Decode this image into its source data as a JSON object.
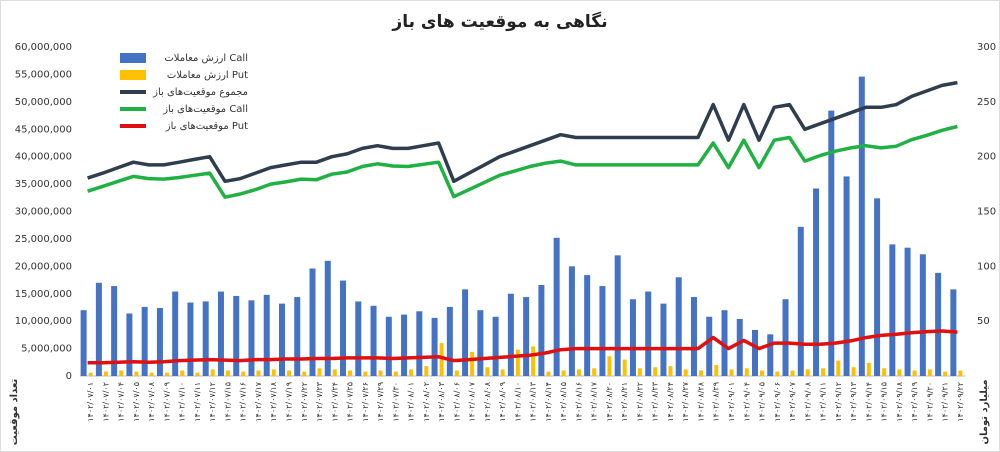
{
  "chart_data": {
    "type": "bar-line",
    "title": "نگاهی به موقعیت های باز",
    "ylabel": "تعداد موقعیت",
    "y2label": "میلیارد تومان",
    "ylim": [
      0,
      60000000
    ],
    "yticks": [
      {
        "value": 0,
        "label": "0"
      },
      {
        "value": 5000000,
        "label": "5,000,000"
      },
      {
        "value": 10000000,
        "label": "10,000,000"
      },
      {
        "value": 15000000,
        "label": "15,000,000"
      },
      {
        "value": 20000000,
        "label": "20,000,000"
      },
      {
        "value": 25000000,
        "label": "25,000,000"
      },
      {
        "value": 30000000,
        "label": "30,000,000"
      },
      {
        "value": 35000000,
        "label": "35,000,000"
      },
      {
        "value": 40000000,
        "label": "40,000,000"
      },
      {
        "value": 45000000,
        "label": "45,000,000"
      },
      {
        "value": 50000000,
        "label": "50,000,000"
      },
      {
        "value": 55000000,
        "label": "55,000,000"
      },
      {
        "value": 60000000,
        "label": "60,000,000"
      }
    ],
    "y2lim": [
      0,
      300
    ],
    "y2ticks": [
      50,
      100,
      150,
      200,
      250,
      300
    ],
    "legend": "top-left",
    "categories": [
      "۱۴۰۲/۰۷/۰۱",
      "۱۴۰۲/۰۷/۰۲",
      "۱۴۰۲/۰۷/۰۴",
      "۱۴۰۲/۰۷/۰۵",
      "۱۴۰۲/۰۷/۰۸",
      "۱۴۰۲/۰۷/۰۹",
      "۱۴۰۲/۰۷/۱۰",
      "۱۴۰۲/۰۷/۱۱",
      "۱۴۰۲/۰۷/۱۲",
      "۱۴۰۲/۰۷/۱۵",
      "۱۴۰۲/۰۷/۱۶",
      "۱۴۰۲/۰۷/۱۷",
      "۱۴۰۲/۰۷/۱۸",
      "۱۴۰۲/۰۷/۱۹",
      "۱۴۰۲/۰۷/۲۲",
      "۱۴۰۲/۰۷/۲۳",
      "۱۴۰۲/۰۷/۲۴",
      "۱۴۰۲/۰۷/۲۵",
      "۱۴۰۲/۰۷/۲۶",
      "۱۴۰۲/۰۷/۲۹",
      "۱۴۰۲/۰۷/۳۰",
      "۱۴۰۲/۰۸/۰۱",
      "۱۴۰۲/۰۸/۰۲",
      "۱۴۰۲/۰۸/۰۳",
      "۱۴۰۲/۰۸/۰۶",
      "۱۴۰۲/۰۸/۰۷",
      "۱۴۰۲/۰۸/۰۸",
      "۱۴۰۲/۰۸/۰۹",
      "۱۴۰۲/۰۸/۱۰",
      "۱۴۰۲/۰۸/۱۳",
      "۱۴۰۲/۰۸/۱۴",
      "۱۴۰۲/۰۸/۱۵",
      "۱۴۰۲/۰۸/۱۶",
      "۱۴۰۲/۰۸/۱۷",
      "۱۴۰۲/۰۸/۲۰",
      "۱۴۰۲/۰۸/۲۱",
      "۱۴۰۲/۰۸/۲۲",
      "۱۴۰۲/۰۸/۲۳",
      "۱۴۰۲/۰۸/۲۴",
      "۱۴۰۲/۰۸/۲۷",
      "۱۴۰۲/۰۸/۲۸",
      "۱۴۰۲/۰۸/۲۹",
      "۱۴۰۲/۰۹/۰۱",
      "۱۴۰۲/۰۹/۰۴",
      "۱۴۰۲/۰۹/۰۵",
      "۱۴۰۲/۰۹/۰۶",
      "۱۴۰۲/۰۹/۰۷",
      "۱۴۰۲/۰۹/۰۸",
      "۱۴۰۲/۰۹/۱۱",
      "۱۴۰۲/۰۹/۱۲",
      "۱۴۰۲/۰۹/۱۳",
      "۱۴۰۲/۰۹/۱۴",
      "۱۴۰۲/۰۹/۱۵",
      "۱۴۰۲/۰۹/۱۸",
      "۱۴۰۲/۰۹/۱۹",
      "۱۴۰۲/۰۹/۲۰",
      "۱۴۰۲/۰۹/۲۱",
      "۱۴۰۲/۰۹/۲۲"
    ],
    "series": [
      {
        "name": "ارزش معاملات Call",
        "type": "bar",
        "axis": "y2",
        "color": "#4472c4",
        "values": [
          60,
          85,
          82,
          57,
          63,
          62,
          77,
          67,
          68,
          77,
          73,
          69,
          74,
          66,
          72,
          98,
          105,
          87,
          68,
          64,
          54,
          56,
          59,
          53,
          63,
          79,
          60,
          54,
          75,
          72,
          83,
          126,
          100,
          92,
          82,
          110,
          70,
          77,
          66,
          90,
          72,
          54,
          60,
          52,
          42,
          38,
          70,
          136,
          171,
          242,
          182,
          273,
          162,
          120,
          117,
          111,
          94,
          79
        ]
      },
      {
        "name": "ارزش معاملات Put",
        "type": "bar",
        "axis": "y2",
        "color": "#ffc000",
        "values": [
          3,
          4,
          5,
          4,
          3,
          3,
          5,
          3,
          6,
          5,
          4,
          5,
          6,
          5,
          4,
          7,
          6,
          5,
          4,
          5,
          4,
          6,
          9,
          30,
          5,
          22,
          8,
          6,
          24,
          27,
          4,
          5,
          6,
          7,
          18,
          15,
          7,
          8,
          9,
          6,
          5,
          10,
          6,
          7,
          5,
          4,
          5,
          6,
          7,
          14,
          8,
          12,
          7,
          6,
          5,
          6,
          4,
          5
        ]
      },
      {
        "name": "مجموع موقعیت‌های باز",
        "type": "line",
        "color": "#2f3e4e",
        "values": [
          36100000,
          37000000,
          38000000,
          39000000,
          38500000,
          38500000,
          39000000,
          39500000,
          40000000,
          35500000,
          36000000,
          37000000,
          38000000,
          38500000,
          39000000,
          39000000,
          40000000,
          40500000,
          41500000,
          42000000,
          41500000,
          41500000,
          42000000,
          42500000,
          35500000,
          37000000,
          38500000,
          40000000,
          41000000,
          42000000,
          43000000,
          44000000,
          43500000,
          43500000,
          43500000,
          43500000,
          43500000,
          43500000,
          43500000,
          43500000,
          43500000,
          49500000,
          43000000,
          49500000,
          43000000,
          49000000,
          49500000,
          45000000,
          46000000,
          47000000,
          48000000,
          49000000,
          49000000,
          49500000,
          51000000,
          52000000,
          53000000,
          53500000
        ]
      },
      {
        "name": "موقعیت‌های باز Call",
        "type": "line",
        "color": "#1fb141",
        "values": [
          33700000,
          34600000,
          35500000,
          36400000,
          36000000,
          35900000,
          36200000,
          36600000,
          37000000,
          32600000,
          33200000,
          34000000,
          35000000,
          35400000,
          35900000,
          35800000,
          36800000,
          37200000,
          38200000,
          38700000,
          38300000,
          38200000,
          38600000,
          39000000,
          32700000,
          34000000,
          35300000,
          36600000,
          37400000,
          38200000,
          38800000,
          39200000,
          38500000,
          38500000,
          38500000,
          38500000,
          38500000,
          38500000,
          38500000,
          38500000,
          38500000,
          42500000,
          38000000,
          43000000,
          38000000,
          43000000,
          43500000,
          39200000,
          40200000,
          41000000,
          41600000,
          42000000,
          41600000,
          41900000,
          43100000,
          43900000,
          44800000,
          45500000
        ]
      },
      {
        "name": "موقعیت‌های باز Put",
        "type": "line",
        "color": "#e01010",
        "values": [
          2400000,
          2400000,
          2500000,
          2600000,
          2500000,
          2600000,
          2800000,
          2900000,
          3000000,
          2900000,
          2800000,
          3000000,
          3000000,
          3100000,
          3100000,
          3200000,
          3200000,
          3300000,
          3300000,
          3300000,
          3200000,
          3300000,
          3400000,
          3500000,
          2800000,
          3000000,
          3200000,
          3400000,
          3600000,
          3800000,
          4200000,
          4800000,
          5000000,
          5000000,
          5000000,
          5000000,
          5000000,
          5000000,
          5000000,
          5000000,
          5000000,
          7000000,
          5000000,
          6500000,
          5000000,
          6000000,
          6000000,
          5800000,
          5800000,
          6000000,
          6400000,
          7000000,
          7400000,
          7600000,
          7900000,
          8100000,
          8200000,
          8000000
        ]
      }
    ]
  }
}
